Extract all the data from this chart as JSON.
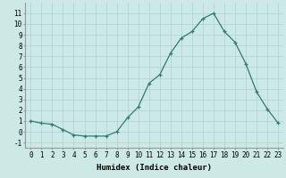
{
  "x": [
    0,
    1,
    2,
    3,
    4,
    5,
    6,
    7,
    8,
    9,
    10,
    11,
    12,
    13,
    14,
    15,
    16,
    17,
    18,
    19,
    20,
    21,
    22,
    23
  ],
  "y": [
    1,
    0.8,
    0.7,
    0.2,
    -0.3,
    -0.4,
    -0.4,
    -0.4,
    0.0,
    1.3,
    2.3,
    4.5,
    5.3,
    7.3,
    8.7,
    9.3,
    10.5,
    11.0,
    9.3,
    8.3,
    6.3,
    3.7,
    2.1,
    0.8
  ],
  "xlabel": "Humidex (Indice chaleur)",
  "xlim": [
    -0.5,
    23.5
  ],
  "ylim": [
    -1.5,
    12
  ],
  "line_color": "#2e7d6e",
  "marker_color": "#2e7d6e",
  "bg_color": "#cce9e5",
  "grid_color": "#aad4cf",
  "label_fontsize": 6.5,
  "tick_fontsize": 5.5
}
